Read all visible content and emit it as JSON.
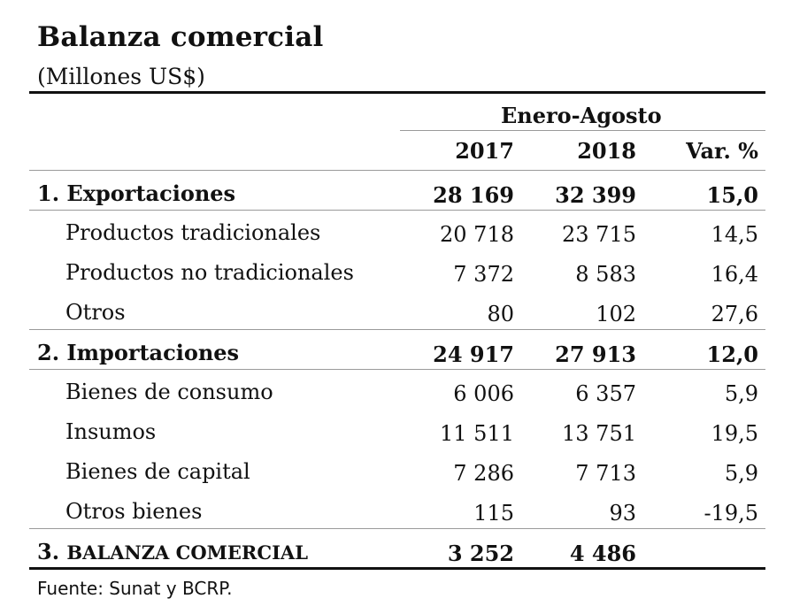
{
  "title": "Balanza comercial",
  "subtitle": "(Millones US$)",
  "header": {
    "period": "Enero-Agosto",
    "col_2017": "2017",
    "col_2018": "2018",
    "col_var": "Var. %"
  },
  "rows": [
    {
      "label": "1. Exportaciones",
      "y2017": "28 169",
      "y2018": "32 399",
      "var": "15,0"
    },
    {
      "label": "Productos tradicionales",
      "y2017": "20 718",
      "y2018": "23 715",
      "var": "14,5"
    },
    {
      "label": "Productos no tradicionales",
      "y2017": "7 372",
      "y2018": "8 583",
      "var": "16,4"
    },
    {
      "label": "Otros",
      "y2017": "80",
      "y2018": "102",
      "var": "27,6"
    },
    {
      "label": "2. Importaciones",
      "y2017": "24 917",
      "y2018": "27 913",
      "var": "12,0"
    },
    {
      "label": "Bienes de consumo",
      "y2017": "6 006",
      "y2018": "6 357",
      "var": "5,9"
    },
    {
      "label": "Insumos",
      "y2017": "11 511",
      "y2018": "13 751",
      "var": "19,5"
    },
    {
      "label": "Bienes de capital",
      "y2017": "7 286",
      "y2018": "7 713",
      "var": "5,9"
    },
    {
      "label": "Otros bienes",
      "y2017": "115",
      "y2018": "93",
      "var": "-19,5"
    },
    {
      "label_num": "3.",
      "label": "BALANZA COMERCIAL",
      "y2017": "3 252",
      "y2018": "4 486",
      "var": ""
    }
  ],
  "source": "Fuente: Sunat y BCRP."
}
